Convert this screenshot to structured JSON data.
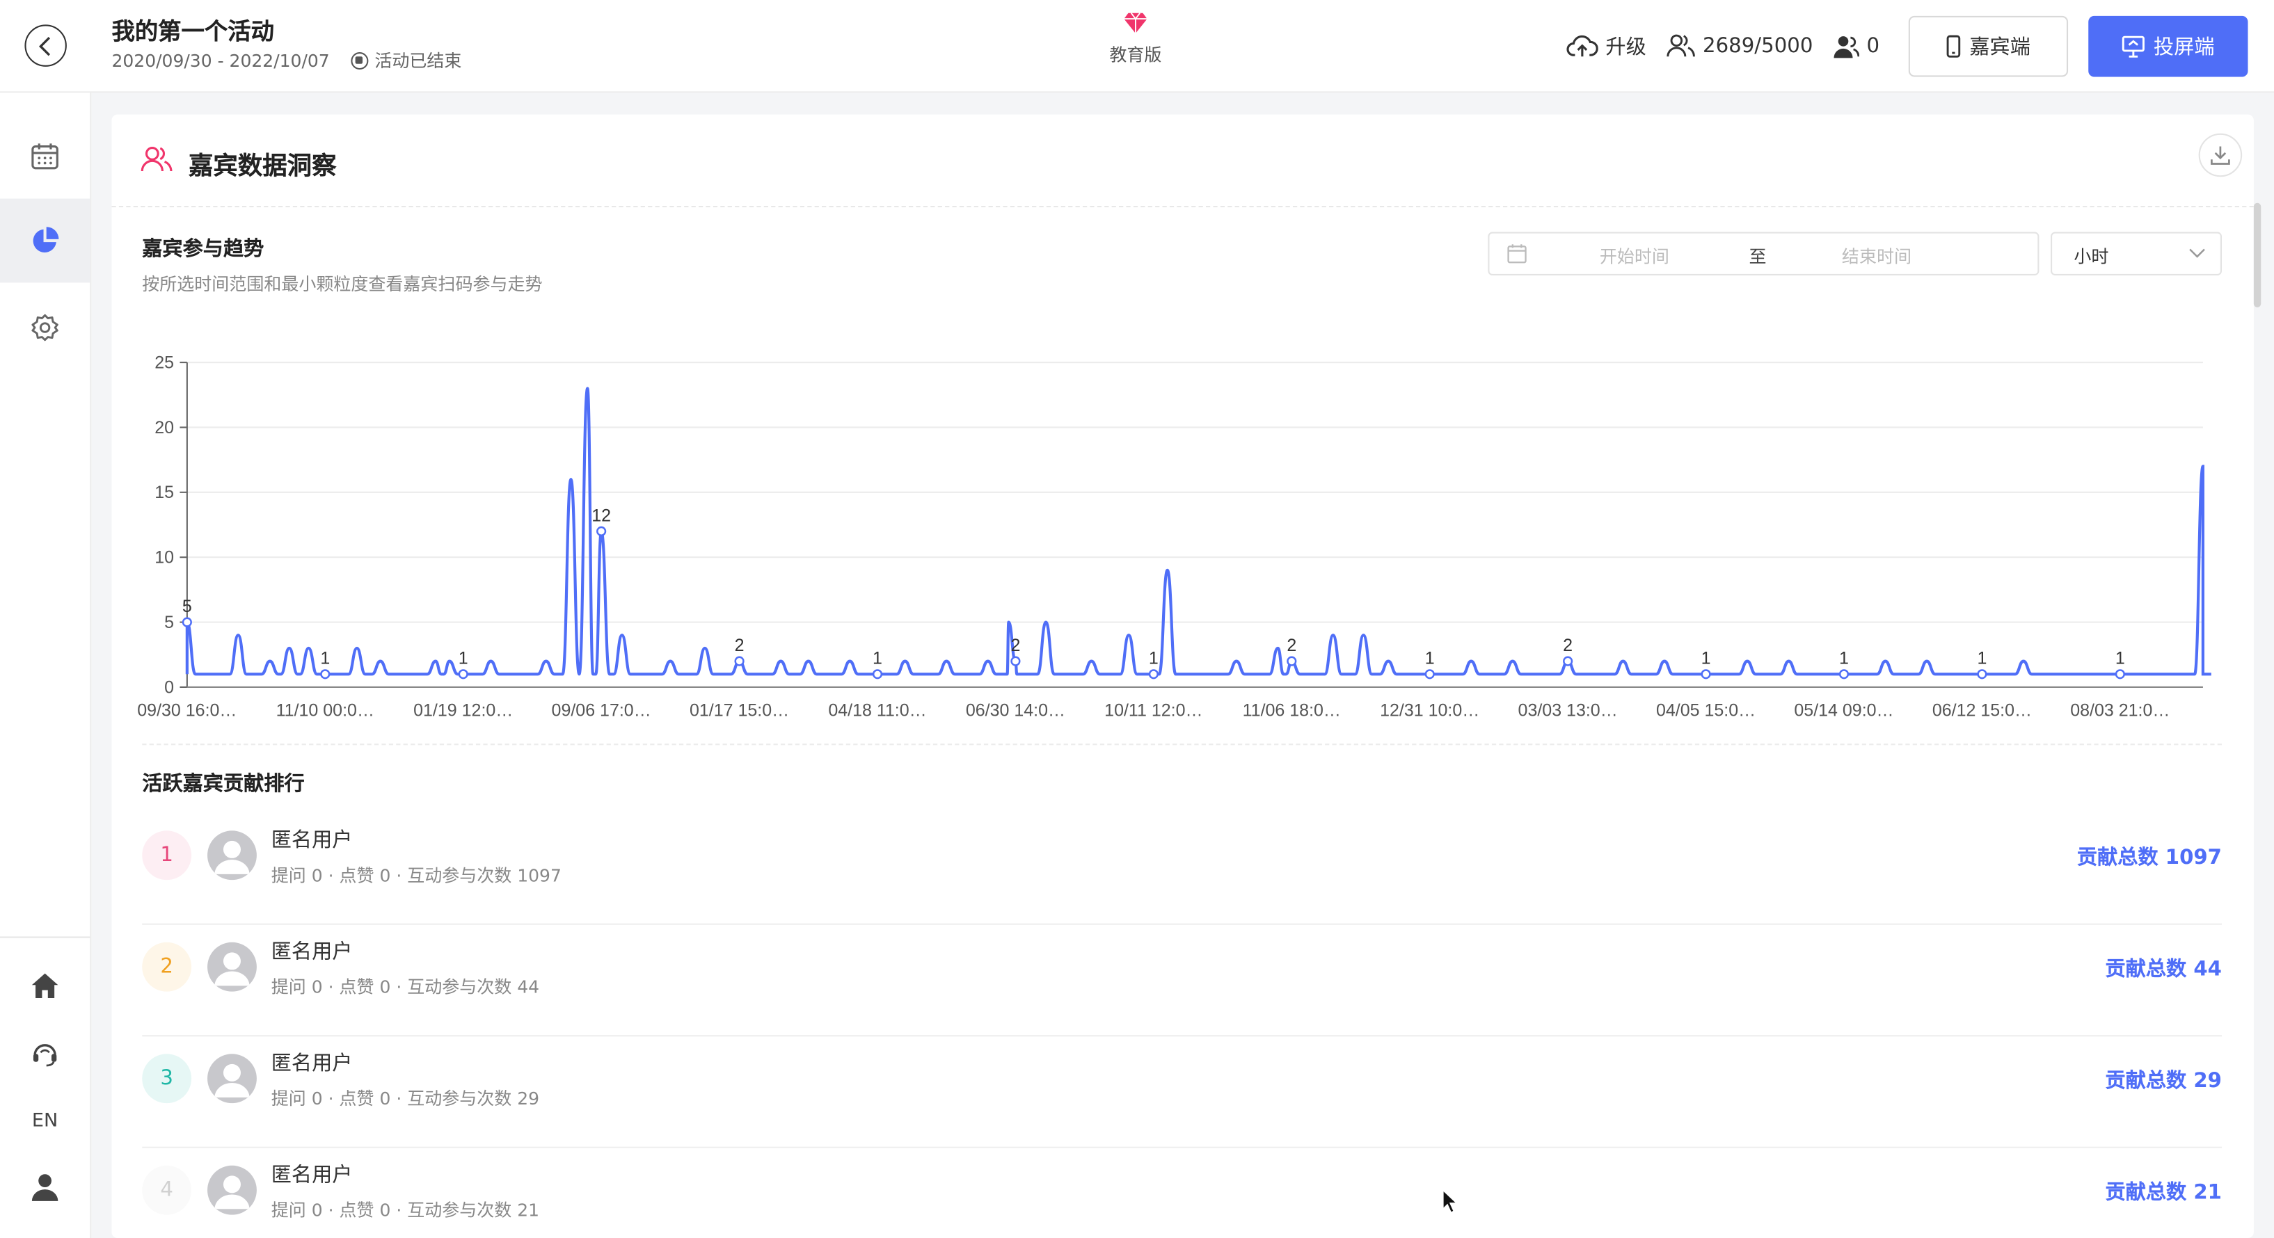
{
  "header": {
    "title": "我的第一个活动",
    "date_range": "2020/09/30 - 2022/10/07",
    "status": "活动已结束",
    "edition": "教育版",
    "upgrade_label": "升级",
    "guest_count": "2689/5000",
    "online_count": "0",
    "guest_button": "嘉宾端",
    "screen_button": "投屏端",
    "accent_color": "#4f6ef7",
    "edition_color": "#f0356b"
  },
  "sidebar": {
    "items": [
      {
        "icon": "calendar-icon"
      },
      {
        "icon": "pie-chart-icon",
        "active": true
      },
      {
        "icon": "gear-icon"
      }
    ],
    "bottom": [
      {
        "icon": "home-icon"
      },
      {
        "icon": "support-icon"
      },
      {
        "label": "EN"
      },
      {
        "icon": "user-icon"
      }
    ]
  },
  "card": {
    "title": "嘉宾数据洞察",
    "trend_title": "嘉宾参与趋势",
    "trend_desc": "按所选时间范围和最小颗粒度查看嘉宾扫码参与走势",
    "range_start_placeholder": "开始时间",
    "range_sep": "至",
    "range_end_placeholder": "结束时间",
    "granularity": "小时",
    "ranking_title": "活跃嘉宾贡献排行"
  },
  "chart_data": {
    "type": "line",
    "line_color": "#4f6ef7",
    "ylim": [
      0,
      25
    ],
    "yticks": [
      0,
      5,
      10,
      15,
      20,
      25
    ],
    "x_labels": [
      "09/30 16:0…",
      "11/10 00:0…",
      "01/19 12:0…",
      "09/06 17:0…",
      "01/17 15:0…",
      "04/18 11:0…",
      "06/30 14:0…",
      "10/11 12:0…",
      "11/06 18:0…",
      "12/31 10:0…",
      "03/03 13:0…",
      "04/05 15:0…",
      "05/14 09:0…",
      "06/12 15:0…",
      "08/03 21:0…"
    ],
    "labeled_points": [
      {
        "x": 0,
        "y": 5,
        "label": "5"
      },
      {
        "x": 1,
        "y": 1,
        "label": "1"
      },
      {
        "x": 2,
        "y": 1,
        "label": "1"
      },
      {
        "x": 3,
        "y": 12,
        "label": "12"
      },
      {
        "x": 4,
        "y": 2,
        "label": "2"
      },
      {
        "x": 5,
        "y": 1,
        "label": "1"
      },
      {
        "x": 6,
        "y": 2,
        "label": "2"
      },
      {
        "x": 7,
        "y": 1,
        "label": "1"
      },
      {
        "x": 8,
        "y": 2,
        "label": "2"
      },
      {
        "x": 9,
        "y": 1,
        "label": "1"
      },
      {
        "x": 10,
        "y": 2,
        "label": "2"
      },
      {
        "x": 11,
        "y": 1,
        "label": "1"
      },
      {
        "x": 12,
        "y": 1,
        "label": "1"
      },
      {
        "x": 13,
        "y": 1,
        "label": "1"
      },
      {
        "x": 14,
        "y": 1,
        "label": "1"
      }
    ],
    "baseline": 1,
    "peaks": [
      {
        "x": 0.37,
        "y": 4
      },
      {
        "x": 0.6,
        "y": 2
      },
      {
        "x": 0.74,
        "y": 3
      },
      {
        "x": 0.88,
        "y": 3
      },
      {
        "x": 1.23,
        "y": 3
      },
      {
        "x": 1.4,
        "y": 2
      },
      {
        "x": 1.8,
        "y": 2
      },
      {
        "x": 1.9,
        "y": 2
      },
      {
        "x": 2.2,
        "y": 2
      },
      {
        "x": 2.6,
        "y": 2
      },
      {
        "x": 2.78,
        "y": 16
      },
      {
        "x": 2.9,
        "y": 23
      },
      {
        "x": 3.15,
        "y": 4
      },
      {
        "x": 3.5,
        "y": 2
      },
      {
        "x": 3.75,
        "y": 3
      },
      {
        "x": 4.3,
        "y": 2
      },
      {
        "x": 4.5,
        "y": 2
      },
      {
        "x": 4.8,
        "y": 2
      },
      {
        "x": 5.2,
        "y": 2
      },
      {
        "x": 5.5,
        "y": 2
      },
      {
        "x": 5.8,
        "y": 2
      },
      {
        "x": 5.95,
        "y": 5
      },
      {
        "x": 6.22,
        "y": 5
      },
      {
        "x": 6.55,
        "y": 2
      },
      {
        "x": 6.82,
        "y": 4
      },
      {
        "x": 7.1,
        "y": 9
      },
      {
        "x": 7.6,
        "y": 2
      },
      {
        "x": 7.9,
        "y": 3
      },
      {
        "x": 8.3,
        "y": 4
      },
      {
        "x": 8.52,
        "y": 4
      },
      {
        "x": 8.7,
        "y": 2
      },
      {
        "x": 9.3,
        "y": 2
      },
      {
        "x": 9.6,
        "y": 2
      },
      {
        "x": 10.4,
        "y": 2
      },
      {
        "x": 10.7,
        "y": 2
      },
      {
        "x": 11.3,
        "y": 2
      },
      {
        "x": 11.6,
        "y": 2
      },
      {
        "x": 12.3,
        "y": 2
      },
      {
        "x": 12.6,
        "y": 2
      },
      {
        "x": 13.3,
        "y": 2
      },
      {
        "x": 14.6,
        "y": 17
      }
    ],
    "xmax": 14.6
  },
  "ranking": [
    {
      "rank": "1",
      "name": "匿名用户",
      "meta": "提问 0 · 点赞 0 · 互动参与次数 1097",
      "total": "贡献总数 1097",
      "color": "#e7467a",
      "bg": "#fdeef3"
    },
    {
      "rank": "2",
      "name": "匿名用户",
      "meta": "提问 0 · 点赞 0 · 互动参与次数 44",
      "total": "贡献总数 44",
      "color": "#f0a020",
      "bg": "#fef6e8"
    },
    {
      "rank": "3",
      "name": "匿名用户",
      "meta": "提问 0 · 点赞 0 · 互动参与次数 29",
      "total": "贡献总数 29",
      "color": "#1fb7a6",
      "bg": "#e6f7f5"
    },
    {
      "rank": "4",
      "name": "匿名用户",
      "meta": "提问 0 · 点赞 0 · 互动参与次数 21",
      "total": "贡献总数 21",
      "color": "#d0d0d0",
      "bg": "#fafafa"
    }
  ]
}
